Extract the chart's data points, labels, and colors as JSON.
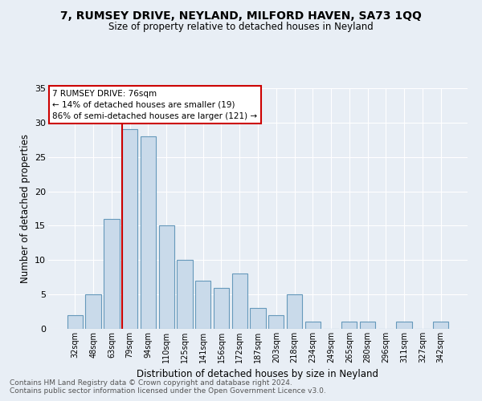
{
  "title": "7, RUMSEY DRIVE, NEYLAND, MILFORD HAVEN, SA73 1QQ",
  "subtitle": "Size of property relative to detached houses in Neyland",
  "xlabel": "Distribution of detached houses by size in Neyland",
  "ylabel": "Number of detached properties",
  "bar_labels": [
    "32sqm",
    "48sqm",
    "63sqm",
    "79sqm",
    "94sqm",
    "110sqm",
    "125sqm",
    "141sqm",
    "156sqm",
    "172sqm",
    "187sqm",
    "203sqm",
    "218sqm",
    "234sqm",
    "249sqm",
    "265sqm",
    "280sqm",
    "296sqm",
    "311sqm",
    "327sqm",
    "342sqm"
  ],
  "bar_values": [
    2,
    5,
    16,
    29,
    28,
    15,
    10,
    7,
    6,
    8,
    3,
    2,
    5,
    1,
    0,
    1,
    1,
    0,
    1,
    0,
    1
  ],
  "bar_color": "#c9daea",
  "bar_edge_color": "#6699bb",
  "bg_color": "#e8eef5",
  "grid_color": "#ffffff",
  "vline_color": "#cc0000",
  "annotation_text": "7 RUMSEY DRIVE: 76sqm\n← 14% of detached houses are smaller (19)\n86% of semi-detached houses are larger (121) →",
  "annotation_box_color": "#ffffff",
  "annotation_box_edge": "#cc0000",
  "footnote1": "Contains HM Land Registry data © Crown copyright and database right 2024.",
  "footnote2": "Contains public sector information licensed under the Open Government Licence v3.0.",
  "ylim": [
    0,
    35
  ],
  "yticks": [
    0,
    5,
    10,
    15,
    20,
    25,
    30,
    35
  ]
}
